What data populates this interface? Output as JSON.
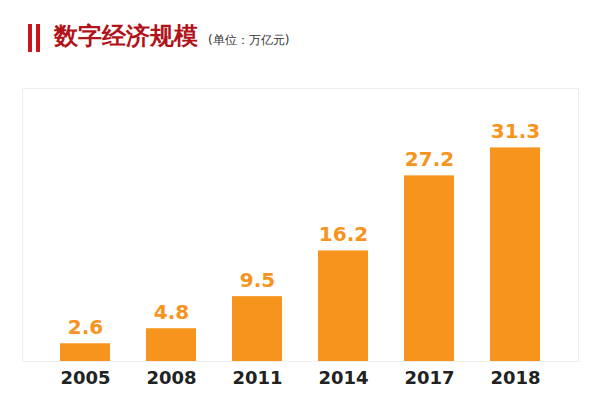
{
  "chart_data": {
    "type": "bar",
    "title": "数字经济规模",
    "subtitle": "(单位：万亿元)",
    "categories": [
      "2005",
      "2008",
      "2011",
      "2014",
      "2017",
      "2018"
    ],
    "values": [
      2.6,
      4.8,
      9.5,
      16.2,
      27.2,
      31.3
    ],
    "color": "#f7941d",
    "ylim": [
      0,
      40
    ],
    "data_labels": true,
    "tick_labels": "x"
  }
}
